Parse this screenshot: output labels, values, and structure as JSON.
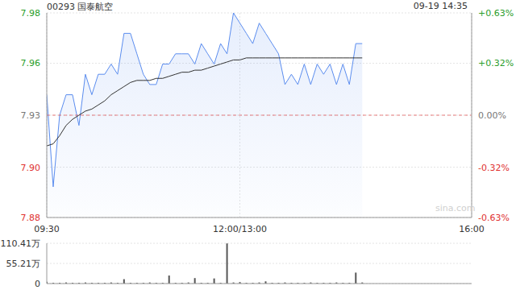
{
  "chart_data": [
    {
      "type": "line",
      "title": "00293 国泰航空",
      "subtitle": "09-19 14:35",
      "annotations": [
        "sina.com"
      ],
      "x": [
        0,
        5,
        10,
        15,
        20,
        25,
        30,
        35,
        40,
        45,
        50,
        55,
        60,
        65,
        70,
        75,
        80,
        85,
        90,
        95,
        100,
        105,
        110,
        115,
        120,
        125,
        130,
        135,
        140,
        145,
        150,
        155,
        160,
        165,
        170,
        175,
        180,
        185,
        190,
        195,
        200,
        205,
        210,
        215,
        220,
        225,
        230,
        235,
        240,
        245
      ],
      "xlim": [
        0,
        330
      ],
      "xticks": [
        {
          "value": 0,
          "label": "09:30"
        },
        {
          "value": 150,
          "label": "12:00/13:00"
        },
        {
          "value": 330,
          "label": "16:00"
        }
      ],
      "ylim": [
        7.88,
        7.98
      ],
      "yticks": [
        7.88,
        {
          "value": 7.9046,
          "label": "7.90"
        },
        7.93,
        {
          "value": 7.9554,
          "label": "7.96"
        },
        7.98
      ],
      "y2lim": [
        -0.63,
        0.63
      ],
      "y2ticks": [
        {
          "value": -0.63,
          "label": "-0.63%"
        },
        {
          "value": -0.32,
          "label": "-0.32%"
        },
        {
          "value": 0,
          "label": "0.00%"
        },
        {
          "value": 0.32,
          "label": "+0.32%"
        },
        {
          "value": 0.63,
          "label": "+0.63%"
        }
      ],
      "baseline": 7.93,
      "grid": true,
      "series": [
        {
          "type": "area",
          "color": "#5b8def",
          "values": [
            7.94,
            7.895,
            7.93,
            7.94,
            7.94,
            7.925,
            7.95,
            7.94,
            7.95,
            7.95,
            7.955,
            7.95,
            7.97,
            7.97,
            7.96,
            7.95,
            7.945,
            7.945,
            7.955,
            7.955,
            7.96,
            7.96,
            7.96,
            7.955,
            7.965,
            7.96,
            7.955,
            7.965,
            7.96,
            7.98,
            7.975,
            7.97,
            7.965,
            7.975,
            7.97,
            7.965,
            7.96,
            7.945,
            7.95,
            7.945,
            7.955,
            7.945,
            7.955,
            7.95,
            7.955,
            7.945,
            7.955,
            7.945,
            7.965,
            7.965
          ]
        },
        {
          "type": "line",
          "color": "#333333",
          "values": [
            7.915,
            7.916,
            7.92,
            7.925,
            7.928,
            7.93,
            7.932,
            7.933,
            7.935,
            7.937,
            7.94,
            7.942,
            7.944,
            7.946,
            7.947,
            7.947,
            7.947,
            7.948,
            7.948,
            7.949,
            7.95,
            7.951,
            7.951,
            7.952,
            7.952,
            7.953,
            7.954,
            7.955,
            7.956,
            7.957,
            7.957,
            7.958,
            7.958,
            7.958,
            7.958,
            7.958,
            7.958,
            7.958,
            7.958,
            7.958,
            7.958,
            7.958,
            7.958,
            7.958,
            7.958,
            7.958,
            7.958,
            7.958,
            7.958,
            7.958
          ]
        }
      ]
    },
    {
      "type": "bar",
      "x": [
        0,
        5,
        10,
        15,
        20,
        25,
        30,
        35,
        40,
        45,
        50,
        55,
        60,
        65,
        70,
        75,
        80,
        85,
        90,
        95,
        100,
        105,
        110,
        115,
        120,
        125,
        130,
        135,
        140,
        145,
        150,
        155,
        160,
        165,
        170,
        175,
        180,
        185,
        190,
        195,
        200,
        205,
        210,
        215,
        220,
        225,
        230,
        235,
        240,
        245
      ],
      "xlim": [
        0,
        330
      ],
      "values": [
        5,
        2,
        2,
        3,
        2,
        2,
        3,
        2,
        2,
        2,
        3,
        2,
        12,
        2,
        2,
        2,
        3,
        2,
        2,
        22,
        2,
        2,
        3,
        15,
        2,
        2,
        14,
        2,
        110,
        3,
        4,
        2,
        2,
        3,
        6,
        2,
        2,
        3,
        2,
        2,
        2,
        3,
        2,
        2,
        2,
        3,
        2,
        2,
        30,
        3
      ],
      "color": "#555555",
      "ylim": [
        0,
        110.41
      ],
      "yticks": [
        0,
        {
          "value": 55.21,
          "label": "55.21万"
        },
        {
          "value": 110.41,
          "label": "110.41万"
        }
      ],
      "tick_labels": "y"
    }
  ]
}
